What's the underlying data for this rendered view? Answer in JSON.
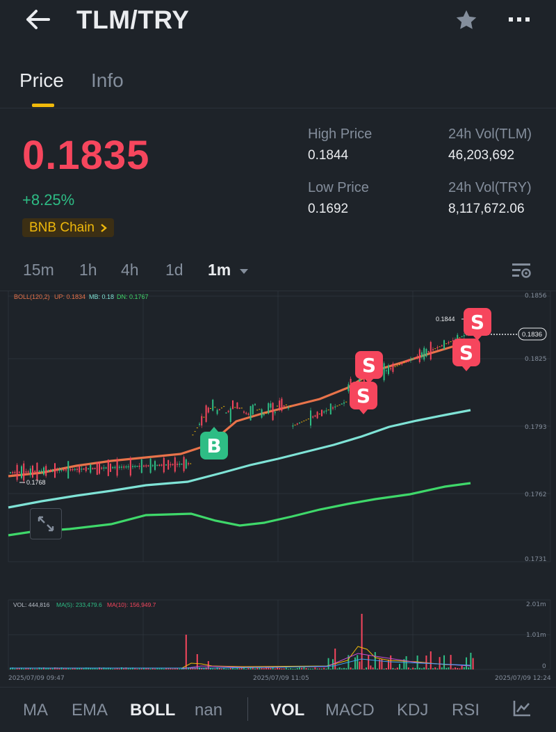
{
  "header": {
    "title": "TLM/TRY",
    "back_icon": "arrow-left-icon",
    "star_icon": "star-icon",
    "more_icon": "more-icon"
  },
  "tabs": [
    {
      "label": "Price"
    },
    {
      "label": "Info"
    }
  ],
  "price": {
    "last": "0.1835",
    "change": "+8.25%",
    "chain": "BNB Chain"
  },
  "stats": {
    "high_label": "High Price",
    "high_value": "0.1844",
    "low_label": "Low Price",
    "low_value": "0.1692",
    "vol_tlm_label": "24h Vol(TLM)",
    "vol_tlm_value": "46,203,692",
    "vol_try_label": "24h Vol(TRY)",
    "vol_try_value": "8,117,672.06"
  },
  "intervals": [
    "15m",
    "1h",
    "4h",
    "1d",
    "1m"
  ],
  "chart": {
    "boll_name": "BOLL(120,2)",
    "boll_up": "UP: 0.1834",
    "boll_mb": "MB: 0.18",
    "boll_dn": "DN: 0.1767",
    "yticks": [
      "0.1856",
      "0.1825",
      "0.1793",
      "0.1762",
      "0.1731"
    ],
    "current_price_tag": "0.1836",
    "high_marker": "0.1844",
    "low_marker": "0.1768",
    "markers": [
      {
        "type": "B"
      },
      {
        "type": "S"
      },
      {
        "type": "S"
      },
      {
        "type": "S"
      },
      {
        "type": "S"
      }
    ],
    "colors": {
      "up": "#2ebd85",
      "down": "#f6465d",
      "upper_band": "#e8734a",
      "middle_band": "#7fe3d6",
      "lower_band": "#3fd86a"
    }
  },
  "volume": {
    "vol": "VOL: 444,816",
    "ma5": "MA(5): 233,479.6",
    "ma10": "MA(10): 156,949.7",
    "yticks": [
      "2.01m",
      "1.01m",
      "0"
    ],
    "xticks": [
      "2025/07/09 09:47",
      "2025/07/09 11:05",
      "2025/07/09 12:24"
    ]
  },
  "indicators_main": [
    "MA",
    "EMA",
    "BOLL",
    "nan"
  ],
  "indicators_sub": [
    "VOL",
    "MACD",
    "KDJ",
    "RSI"
  ]
}
